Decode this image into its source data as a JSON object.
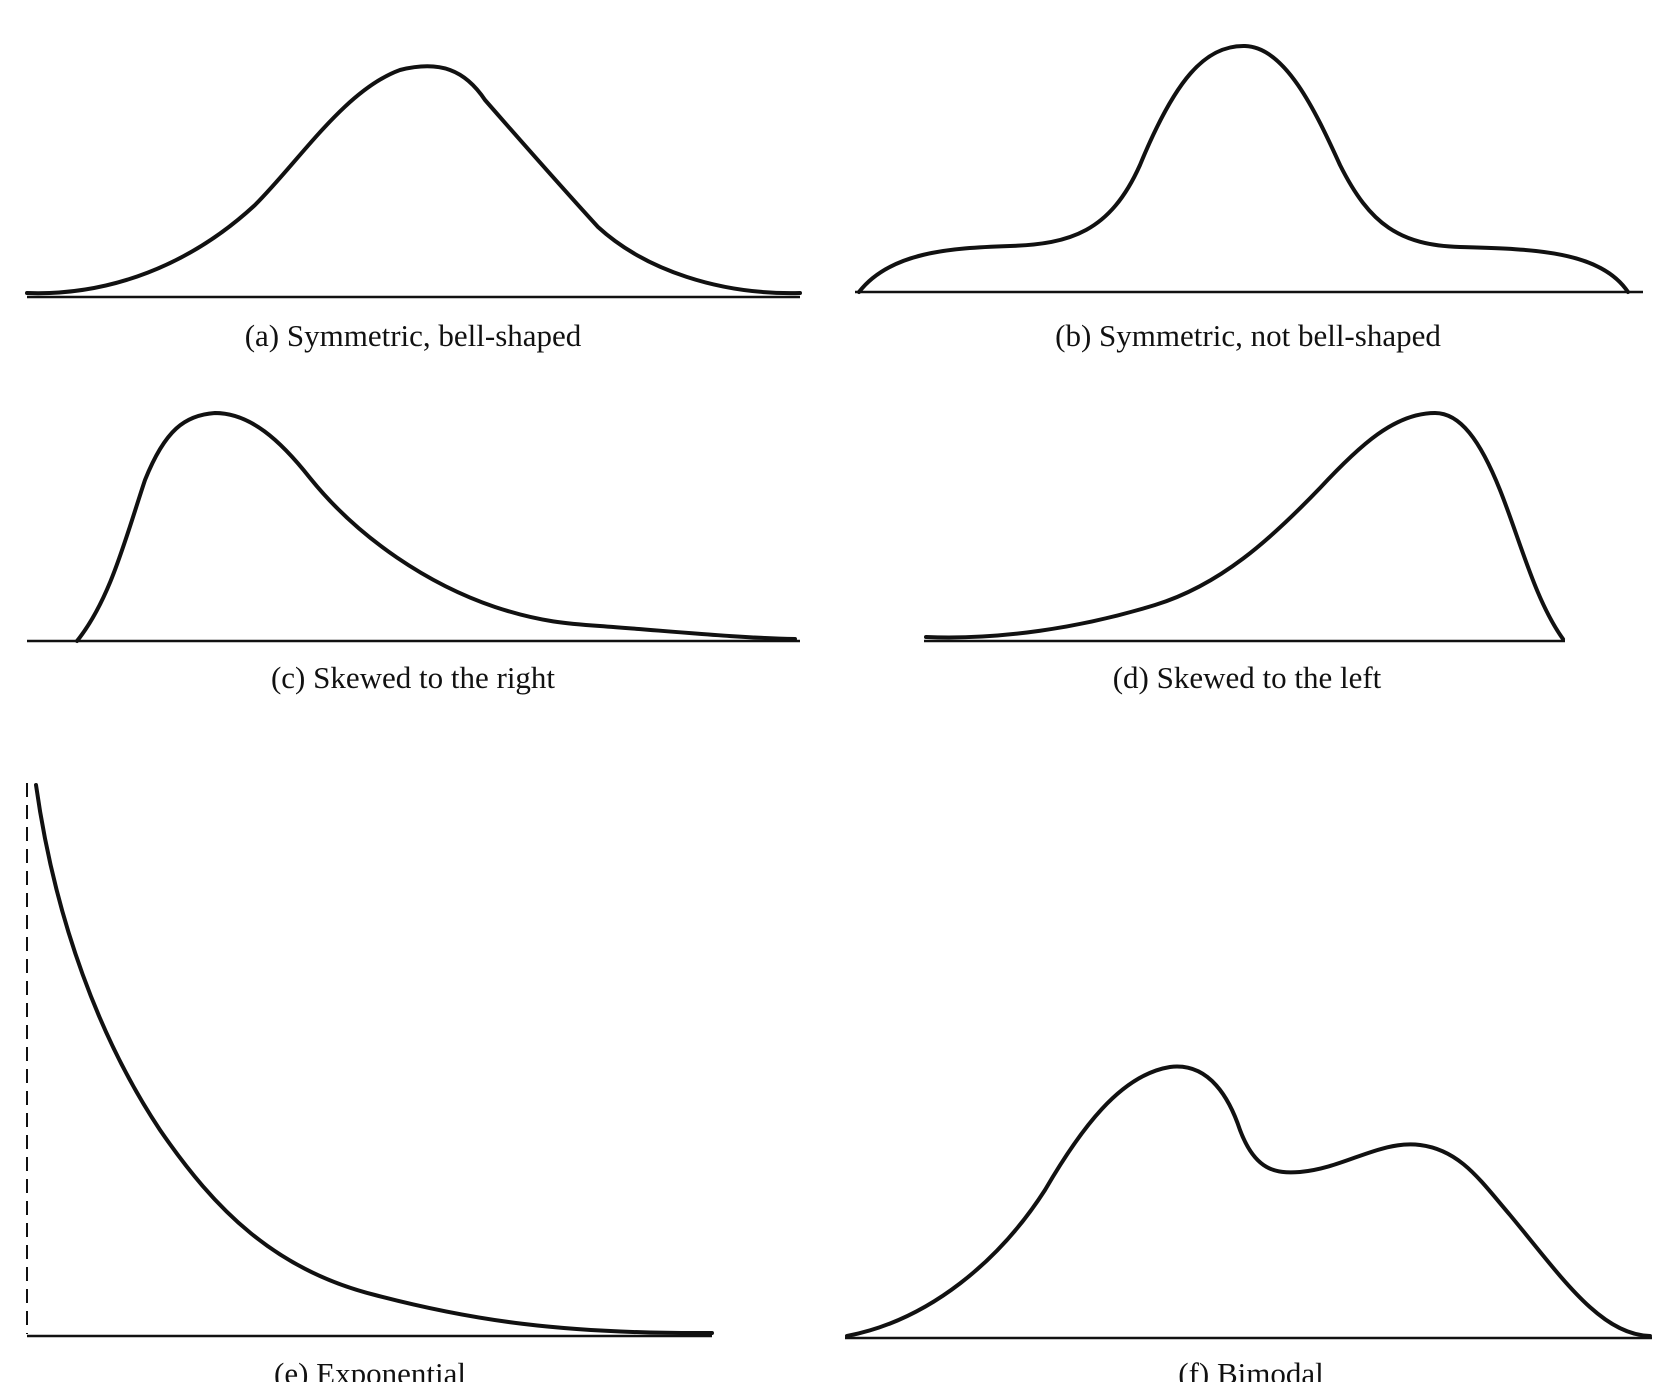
{
  "panels": [
    {
      "id": "a",
      "caption": "(a) Symmetric, bell-shaped"
    },
    {
      "id": "b",
      "caption": "(b) Symmetric, not bell-shaped"
    },
    {
      "id": "c",
      "caption": "(c) Skewed to the right"
    },
    {
      "id": "d",
      "caption": "(d) Skewed to the left"
    },
    {
      "id": "e",
      "caption": "(e) Exponential"
    },
    {
      "id": "f",
      "caption": "(f) Bimodal"
    }
  ]
}
